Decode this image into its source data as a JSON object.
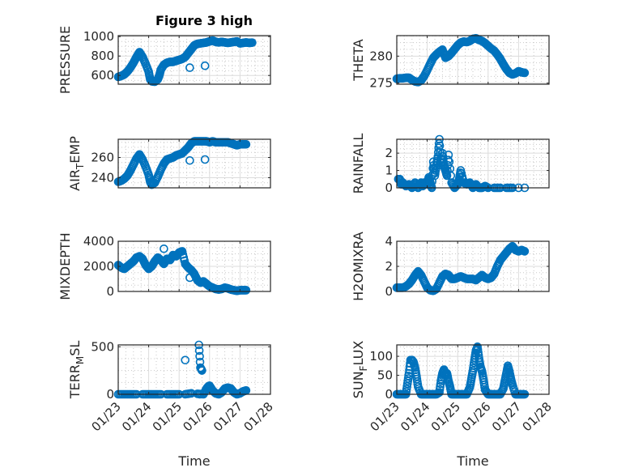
{
  "figure_title": "Figure 3 high",
  "chart_data": [
    {
      "type": "scatter",
      "id": "pressure",
      "title": "Figure 3 high",
      "ylabel": "PRESSURE",
      "ylabel_sub": null,
      "xlabel": "",
      "x_ticks": [
        "01/23",
        "01/24",
        "01/25",
        "01/26",
        "01/27",
        "01/28"
      ],
      "xlim": [
        0,
        5
      ],
      "ylim": [
        510,
        1010
      ],
      "y_ticks": [
        600,
        800,
        1000
      ],
      "grid": true,
      "minor_grid": true,
      "marker": "circle-open",
      "color": "#0072BD",
      "x": [
        0.0,
        0.1,
        0.2,
        0.3,
        0.4,
        0.5,
        0.6,
        0.7,
        0.8,
        0.9,
        1.0,
        1.05,
        1.1,
        1.2,
        1.3,
        1.35,
        1.4,
        1.5,
        1.6,
        1.7,
        1.8,
        1.9,
        2.0,
        2.1,
        2.2,
        2.3,
        2.4,
        2.5,
        2.6,
        2.7,
        2.8,
        2.9,
        3.0,
        3.1,
        3.2,
        3.3,
        3.4,
        3.5,
        3.6,
        3.7,
        3.8,
        3.9,
        4.0,
        4.1,
        4.2,
        4.3,
        4.4,
        2.35,
        2.85
      ],
      "y": [
        585,
        595,
        610,
        640,
        680,
        730,
        790,
        840,
        790,
        720,
        640,
        560,
        540,
        535,
        560,
        600,
        660,
        710,
        730,
        740,
        740,
        750,
        760,
        770,
        790,
        830,
        870,
        910,
        925,
        930,
        935,
        940,
        950,
        960,
        945,
        940,
        945,
        940,
        935,
        940,
        945,
        950,
        930,
        935,
        940,
        935,
        938,
        680,
        700
      ]
    },
    {
      "type": "scatter",
      "id": "theta",
      "ylabel": "THETA",
      "ylabel_sub": null,
      "xlabel": "",
      "x_ticks": [
        "01/23",
        "01/24",
        "01/25",
        "01/26",
        "01/27",
        "01/28"
      ],
      "xlim": [
        0,
        5
      ],
      "ylim": [
        274.8,
        283.8
      ],
      "y_ticks": [
        275,
        280
      ],
      "grid": true,
      "minor_grid": true,
      "marker": "circle-open",
      "color": "#0072BD",
      "x": [
        0.0,
        0.1,
        0.2,
        0.3,
        0.4,
        0.5,
        0.6,
        0.7,
        0.8,
        0.9,
        1.0,
        1.1,
        1.2,
        1.3,
        1.4,
        1.5,
        1.6,
        1.7,
        1.8,
        1.9,
        2.0,
        2.1,
        2.2,
        2.3,
        2.4,
        2.5,
        2.6,
        2.7,
        2.8,
        2.9,
        3.0,
        3.1,
        3.2,
        3.3,
        3.4,
        3.5,
        3.6,
        3.7,
        3.8,
        3.9,
        4.0,
        4.1,
        4.2
      ],
      "y": [
        275.8,
        275.9,
        275.9,
        276.0,
        276.0,
        275.6,
        275.3,
        275.2,
        275.5,
        276.3,
        277.4,
        278.6,
        279.7,
        280.3,
        280.8,
        281.2,
        279.7,
        280.0,
        280.6,
        281.3,
        282.0,
        282.5,
        282.7,
        282.6,
        282.8,
        283.2,
        283.3,
        283.0,
        282.8,
        282.4,
        281.9,
        281.4,
        281.0,
        280.3,
        279.5,
        278.5,
        277.6,
        276.9,
        276.6,
        276.8,
        277.2,
        277.0,
        276.9
      ]
    },
    {
      "type": "scatter",
      "id": "air_temp",
      "ylabel": "AIR",
      "ylabel_sub": "T",
      "ylabel_rest": "EMP",
      "xlabel": "",
      "x_ticks": [
        "01/23",
        "01/24",
        "01/25",
        "01/26",
        "01/27",
        "01/28"
      ],
      "xlim": [
        0,
        5
      ],
      "ylim": [
        230,
        278
      ],
      "y_ticks": [
        240,
        260
      ],
      "grid": true,
      "minor_grid": true,
      "marker": "circle-open",
      "color": "#0072BD",
      "x": [
        0.0,
        0.1,
        0.2,
        0.3,
        0.4,
        0.5,
        0.6,
        0.7,
        0.8,
        0.9,
        1.0,
        1.05,
        1.1,
        1.2,
        1.3,
        1.4,
        1.5,
        1.6,
        1.7,
        1.8,
        1.9,
        2.0,
        2.1,
        2.2,
        2.3,
        2.4,
        2.5,
        2.6,
        2.7,
        2.8,
        2.9,
        3.0,
        3.1,
        3.2,
        3.3,
        3.4,
        3.5,
        3.6,
        3.7,
        3.8,
        3.9,
        4.0,
        4.1,
        4.2,
        2.35,
        2.85
      ],
      "y": [
        236,
        237,
        239,
        242,
        247,
        253,
        259,
        263,
        258,
        251,
        243,
        236,
        233,
        235,
        241,
        248,
        254,
        258,
        259,
        260,
        262,
        263,
        264,
        267,
        270,
        274,
        276,
        276,
        276,
        276,
        276,
        275,
        276,
        275,
        275,
        275,
        275,
        275,
        274,
        273,
        272,
        273,
        273,
        273,
        257,
        258
      ]
    },
    {
      "type": "scatter",
      "id": "rainfall",
      "ylabel": "RAINFALL",
      "ylabel_sub": null,
      "xlabel": "",
      "x_ticks": [
        "01/23",
        "01/24",
        "01/25",
        "01/26",
        "01/27",
        "01/28"
      ],
      "xlim": [
        0,
        5
      ],
      "ylim": [
        0,
        2.8
      ],
      "y_ticks": [
        0,
        1,
        2
      ],
      "grid": true,
      "minor_grid": true,
      "marker": "circle-open",
      "color": "#0072BD",
      "x": [
        0.05,
        0.1,
        0.15,
        0.2,
        0.3,
        0.4,
        0.5,
        0.6,
        0.7,
        0.8,
        0.85,
        0.9,
        1.0,
        1.05,
        1.1,
        1.15,
        1.2,
        1.25,
        1.3,
        1.35,
        1.4,
        1.45,
        1.5,
        1.55,
        1.6,
        1.65,
        1.7,
        1.8,
        1.9,
        2.0,
        2.05,
        2.1,
        2.2,
        2.3,
        2.4,
        2.5,
        2.6,
        2.7,
        2.8,
        2.9,
        3.0,
        3.2,
        3.4,
        3.6,
        3.8,
        4.0,
        4.2
      ],
      "y": [
        0.5,
        0.5,
        0.2,
        0.3,
        0.1,
        0.2,
        0.0,
        0.3,
        0.0,
        0.3,
        0.1,
        0.3,
        0.2,
        0.6,
        0.3,
        0.0,
        1.5,
        0.7,
        1.3,
        1.8,
        2.8,
        1.3,
        2.0,
        1.3,
        1.0,
        0.7,
        1.9,
        0.3,
        0.0,
        0.2,
        0.5,
        1.0,
        0.3,
        0.2,
        0.3,
        0.0,
        0.2,
        0.0,
        0.0,
        0.1,
        0.0,
        0.0,
        0.0,
        0.0,
        0.0,
        0.0,
        0.0
      ]
    },
    {
      "type": "scatter",
      "id": "mixdepth",
      "ylabel": "MIXDEPTH",
      "ylabel_sub": null,
      "xlabel": "",
      "x_ticks": [
        "01/23",
        "01/24",
        "01/25",
        "01/26",
        "01/27",
        "01/28"
      ],
      "xlim": [
        0,
        5
      ],
      "ylim": [
        0,
        4000
      ],
      "y_ticks": [
        0,
        2000,
        4000
      ],
      "grid": true,
      "minor_grid": true,
      "marker": "circle-open",
      "color": "#0072BD",
      "x": [
        0.0,
        0.1,
        0.2,
        0.3,
        0.4,
        0.5,
        0.6,
        0.7,
        0.8,
        0.9,
        1.0,
        1.1,
        1.2,
        1.3,
        1.4,
        1.5,
        1.6,
        1.7,
        1.8,
        1.9,
        2.0,
        2.1,
        2.2,
        2.3,
        2.4,
        2.5,
        2.6,
        2.7,
        2.8,
        2.9,
        3.0,
        3.1,
        3.2,
        3.3,
        3.4,
        3.5,
        3.6,
        3.7,
        3.8,
        3.9,
        4.0,
        4.1,
        4.2,
        1.5,
        2.35
      ],
      "y": [
        2100,
        1900,
        1800,
        2000,
        2200,
        2400,
        2700,
        2800,
        2600,
        2100,
        1800,
        2000,
        2400,
        2700,
        2500,
        2200,
        2600,
        2500,
        2900,
        2800,
        3100,
        3200,
        2200,
        1900,
        1700,
        1400,
        900,
        700,
        800,
        600,
        400,
        300,
        200,
        150,
        200,
        300,
        250,
        150,
        100,
        50,
        100,
        100,
        100,
        3400,
        1100
      ]
    },
    {
      "type": "scatter",
      "id": "h2omixra",
      "ylabel": "H2OMIXRA",
      "ylabel_sub": null,
      "xlabel": "",
      "x_ticks": [
        "01/23",
        "01/24",
        "01/25",
        "01/26",
        "01/27",
        "01/28"
      ],
      "xlim": [
        0,
        5
      ],
      "ylim": [
        0,
        4
      ],
      "y_ticks": [
        0,
        2,
        4
      ],
      "grid": true,
      "minor_grid": true,
      "marker": "circle-open",
      "color": "#0072BD",
      "x": [
        0.0,
        0.1,
        0.2,
        0.3,
        0.4,
        0.5,
        0.6,
        0.7,
        0.8,
        0.9,
        1.0,
        1.1,
        1.2,
        1.3,
        1.4,
        1.5,
        1.6,
        1.7,
        1.8,
        1.9,
        2.0,
        2.1,
        2.2,
        2.3,
        2.4,
        2.5,
        2.6,
        2.7,
        2.8,
        2.9,
        3.0,
        3.1,
        3.2,
        3.3,
        3.4,
        3.5,
        3.6,
        3.7,
        3.8,
        3.9,
        4.0,
        4.1,
        4.2
      ],
      "y": [
        0.3,
        0.3,
        0.3,
        0.4,
        0.6,
        0.9,
        1.3,
        1.6,
        1.3,
        0.8,
        0.3,
        0.1,
        0.05,
        0.2,
        0.7,
        1.2,
        1.4,
        1.3,
        1.0,
        1.0,
        1.1,
        1.2,
        1.1,
        1.0,
        1.0,
        1.0,
        0.9,
        1.1,
        1.3,
        1.1,
        1.0,
        1.1,
        1.4,
        2.0,
        2.5,
        2.8,
        3.1,
        3.4,
        3.6,
        3.3,
        3.2,
        3.3,
        3.2
      ]
    },
    {
      "type": "scatter",
      "id": "terr_msl",
      "ylabel": "TERR",
      "ylabel_sub": "M",
      "ylabel_rest": "SL",
      "xlabel": "Time",
      "x_ticks": [
        "01/23",
        "01/24",
        "01/25",
        "01/26",
        "01/27",
        "01/28"
      ],
      "xlim": [
        0,
        5
      ],
      "ylim": [
        0,
        520
      ],
      "y_ticks": [
        0,
        500
      ],
      "grid": true,
      "minor_grid": true,
      "marker": "circle-open",
      "color": "#0072BD",
      "x": [
        0.0,
        0.2,
        0.4,
        0.6,
        0.8,
        1.0,
        1.2,
        1.4,
        1.6,
        1.8,
        2.0,
        2.2,
        2.4,
        2.6,
        2.8,
        2.9,
        2.95,
        3.0,
        3.1,
        3.2,
        3.3,
        3.4,
        3.5,
        3.6,
        3.7,
        3.8,
        3.9,
        4.0,
        4.1,
        4.2,
        2.2,
        2.65,
        2.7,
        2.75,
        2.68
      ],
      "y": [
        0,
        0,
        0,
        0,
        0,
        0,
        0,
        0,
        0,
        0,
        0,
        0,
        10,
        5,
        0,
        60,
        80,
        90,
        40,
        10,
        0,
        20,
        60,
        70,
        60,
        20,
        0,
        10,
        30,
        40,
        360,
        520,
        280,
        250,
        0
      ]
    },
    {
      "type": "scatter",
      "id": "sun_flux",
      "ylabel": "SUN",
      "ylabel_sub": "F",
      "ylabel_rest": "LUX",
      "xlabel": "Time",
      "x_ticks": [
        "01/23",
        "01/24",
        "01/25",
        "01/26",
        "01/27",
        "01/28"
      ],
      "xlim": [
        0,
        5
      ],
      "ylim": [
        0,
        130
      ],
      "y_ticks": [
        0,
        50,
        100
      ],
      "grid": true,
      "minor_grid": true,
      "marker": "circle-open",
      "color": "#0072BD",
      "x": [
        0.0,
        0.1,
        0.2,
        0.3,
        0.35,
        0.4,
        0.45,
        0.5,
        0.55,
        0.6,
        0.65,
        0.7,
        0.8,
        0.9,
        1.0,
        1.1,
        1.2,
        1.3,
        1.4,
        1.45,
        1.5,
        1.55,
        1.6,
        1.65,
        1.7,
        1.75,
        1.8,
        1.9,
        2.0,
        2.1,
        2.2,
        2.3,
        2.4,
        2.45,
        2.5,
        2.55,
        2.6,
        2.65,
        2.7,
        2.75,
        2.8,
        2.85,
        2.9,
        3.0,
        3.1,
        3.2,
        3.3,
        3.4,
        3.5,
        3.55,
        3.6,
        3.65,
        3.7,
        3.75,
        3.8,
        3.9,
        4.0,
        4.1,
        4.2
      ],
      "y": [
        0,
        0,
        0,
        0,
        28,
        55,
        90,
        90,
        85,
        70,
        47,
        20,
        0,
        0,
        0,
        0,
        0,
        0,
        5,
        35,
        55,
        65,
        50,
        55,
        35,
        20,
        0,
        0,
        0,
        0,
        0,
        0,
        18,
        40,
        62,
        90,
        115,
        125,
        95,
        72,
        60,
        38,
        12,
        0,
        0,
        0,
        0,
        0,
        15,
        35,
        55,
        75,
        60,
        40,
        25,
        0,
        0,
        0,
        0
      ]
    }
  ]
}
